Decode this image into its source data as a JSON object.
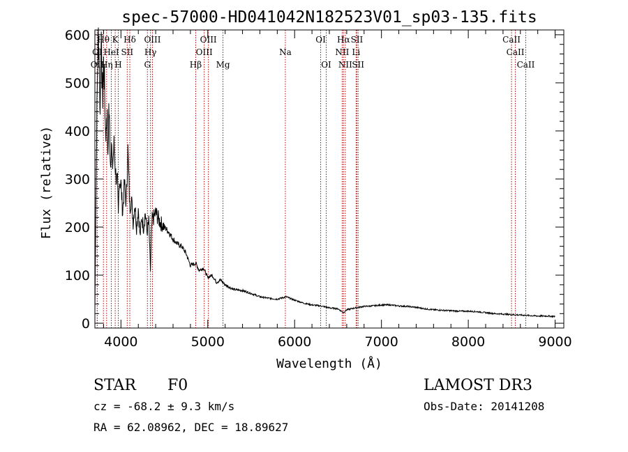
{
  "chart_data": {
    "type": "line",
    "title": "spec-57000-HD041042N182523V01_sp03-135.fits",
    "xlabel": "Wavelength (Å)",
    "ylabel": "Flux (relative)",
    "xlim": [
      3700,
      9100
    ],
    "ylim": [
      -10,
      610
    ],
    "x_ticks": [
      4000,
      5000,
      6000,
      7000,
      8000,
      9000
    ],
    "y_ticks": [
      0,
      100,
      200,
      300,
      400,
      500,
      600
    ],
    "series": [
      {
        "name": "flux",
        "x": [
          3700,
          3710,
          3720,
          3730,
          3740,
          3750,
          3760,
          3770,
          3780,
          3790,
          3800,
          3810,
          3820,
          3830,
          3840,
          3850,
          3860,
          3870,
          3880,
          3890,
          3900,
          3920,
          3940,
          3960,
          3970,
          3980,
          4000,
          4020,
          4040,
          4060,
          4080,
          4101,
          4120,
          4140,
          4160,
          4180,
          4200,
          4220,
          4240,
          4260,
          4280,
          4300,
          4320,
          4340,
          4350,
          4360,
          4380,
          4400,
          4450,
          4500,
          4550,
          4600,
          4650,
          4700,
          4750,
          4800,
          4861,
          4900,
          4950,
          5000,
          5050,
          5100,
          5150,
          5200,
          5300,
          5400,
          5500,
          5600,
          5700,
          5800,
          5900,
          6000,
          6100,
          6200,
          6300,
          6400,
          6500,
          6563,
          6600,
          6700,
          6800,
          6900,
          7000,
          7100,
          7200,
          7300,
          7400,
          7500,
          7600,
          7700,
          7800,
          7900,
          8000,
          8100,
          8200,
          8300,
          8400,
          8500,
          8600,
          8700,
          8800,
          8900,
          9000
        ],
        "values": [
          20,
          230,
          400,
          520,
          600,
          560,
          430,
          590,
          520,
          470,
          540,
          500,
          420,
          390,
          460,
          330,
          450,
          400,
          330,
          380,
          320,
          370,
          310,
          290,
          220,
          300,
          290,
          230,
          290,
          250,
          360,
          240,
          260,
          210,
          250,
          200,
          240,
          180,
          220,
          200,
          230,
          190,
          210,
          110,
          180,
          215,
          220,
          230,
          210,
          200,
          190,
          175,
          165,
          160,
          145,
          120,
          125,
          110,
          115,
          95,
          100,
          85,
          90,
          80,
          70,
          68,
          62,
          55,
          52,
          50,
          55,
          48,
          42,
          38,
          36,
          32,
          30,
          22,
          28,
          32,
          35,
          36,
          38,
          38,
          36,
          35,
          33,
          30,
          28,
          27,
          26,
          25,
          25,
          24,
          22,
          20,
          19,
          18,
          17,
          16,
          15,
          15,
          14
        ]
      }
    ],
    "spectral_lines": [
      {
        "label": "OII",
        "wl": 3727,
        "row": 2
      },
      {
        "label": "Hθ",
        "wl": 3798,
        "row": 0
      },
      {
        "label": "Hη",
        "wl": 3835,
        "row": 2
      },
      {
        "label": "OI",
        "wl": 3727,
        "row": 1
      },
      {
        "label": "K",
        "wl": 3934,
        "row": 0
      },
      {
        "label": "HeI",
        "wl": 3889,
        "row": 1
      },
      {
        "label": "H",
        "wl": 3969,
        "row": 2
      },
      {
        "label": "SII",
        "wl": 4072,
        "row": 1
      },
      {
        "label": "Hδ",
        "wl": 4102,
        "row": 0
      },
      {
        "label": "OIII",
        "wl": 4363,
        "row": 0
      },
      {
        "label": "Hγ",
        "wl": 4340,
        "row": 1
      },
      {
        "label": "G",
        "wl": 4305,
        "row": 2
      },
      {
        "label": "Hβ",
        "wl": 4861,
        "row": 2
      },
      {
        "label": "OIII",
        "wl": 4959,
        "row": 1
      },
      {
        "label": "OIII",
        "wl": 5007,
        "row": 0
      },
      {
        "label": "Mg",
        "wl": 5175,
        "row": 2
      },
      {
        "label": "Na",
        "wl": 5893,
        "row": 1
      },
      {
        "label": "OI",
        "wl": 6300,
        "row": 0
      },
      {
        "label": "OI",
        "wl": 6364,
        "row": 2
      },
      {
        "label": "Hα",
        "wl": 6563,
        "row": 0
      },
      {
        "label": "NII",
        "wl": 6548,
        "row": 1
      },
      {
        "label": "NII",
        "wl": 6584,
        "row": 2
      },
      {
        "label": "SII",
        "wl": 6717,
        "row": 0
      },
      {
        "label": "Li",
        "wl": 6708,
        "row": 1
      },
      {
        "label": "SII",
        "wl": 6731,
        "row": 2
      },
      {
        "label": "CaII",
        "wl": 8498,
        "row": 0
      },
      {
        "label": "CaII",
        "wl": 8542,
        "row": 1
      },
      {
        "label": "CaII",
        "wl": 8662,
        "row": 2
      }
    ],
    "annotations": {
      "object_class": "STAR",
      "subclass": "F0",
      "survey": "LAMOST DR3",
      "cz": "cz = -68.2 ± 9.3 km/s",
      "obs_date": "Obs-Date: 20141208",
      "radec": "RA =  62.08962, DEC =  18.89627"
    },
    "line_color": "#000000",
    "marker_color": "#b00000"
  }
}
